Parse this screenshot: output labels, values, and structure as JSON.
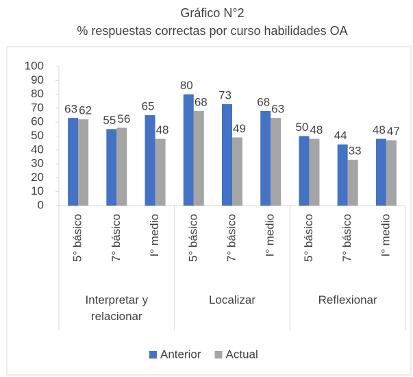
{
  "chart_data": {
    "type": "bar",
    "title": "Gráfico N°2",
    "subtitle": "% respuestas correctas por curso habilidades OA",
    "groups": [
      "Interpretar y relacionar",
      "Localizar",
      "Reflexionar"
    ],
    "categories": [
      "5° básico",
      "7° básico",
      "I° medio",
      "5° básico",
      "7° básico",
      "I° medio",
      "5° básico",
      "7° básico",
      "I° medio"
    ],
    "series": [
      {
        "name": "Anterior",
        "color": "#4472c4",
        "values": [
          63,
          55,
          65,
          80,
          73,
          68,
          50,
          44,
          48
        ]
      },
      {
        "name": "Actual",
        "color": "#a5a5a5",
        "values": [
          62,
          56,
          48,
          68,
          49,
          63,
          48,
          33,
          47
        ]
      }
    ],
    "ylim": [
      0,
      100
    ],
    "yticks": [
      0,
      10,
      20,
      30,
      40,
      50,
      60,
      70,
      80,
      90,
      100
    ],
    "grid": false,
    "legend": "bottom"
  }
}
